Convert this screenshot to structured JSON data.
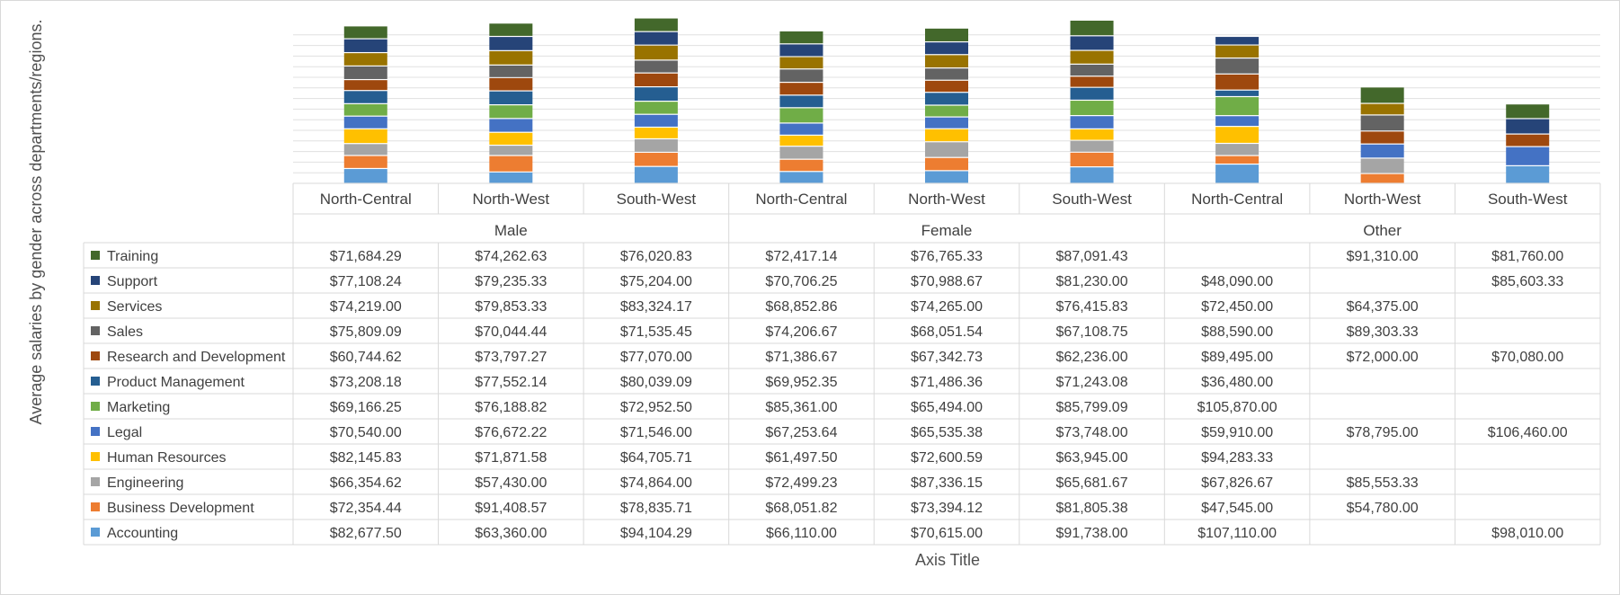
{
  "chart_data": {
    "type": "bar",
    "stacked": true,
    "ylabel": "Average salaries by gender across departments/regions.",
    "xlabel": "Axis Title",
    "groups": [
      "Male",
      "Female",
      "Other"
    ],
    "regions": [
      "North-Central",
      "North-West",
      "South-West"
    ],
    "categories": [
      "North-Central",
      "North-West",
      "South-West",
      "North-Central",
      "North-West",
      "South-West",
      "North-Central",
      "North-West",
      "South-West"
    ],
    "legend": "data-table",
    "grid": true,
    "series": [
      {
        "name": "Accounting",
        "color": "#5b9bd5",
        "values": [
          82677.5,
          63360.0,
          94104.29,
          66110.0,
          70615.0,
          91738.0,
          107110.0,
          null,
          98010.0
        ]
      },
      {
        "name": "Business Development",
        "color": "#ed7d31",
        "values": [
          72354.44,
          91408.57,
          78835.71,
          68051.82,
          73394.12,
          81805.38,
          47545.0,
          54780.0,
          null
        ]
      },
      {
        "name": "Engineering",
        "color": "#a5a5a5",
        "values": [
          66354.62,
          57430.0,
          74864.0,
          72499.23,
          87336.15,
          65681.67,
          67826.67,
          85553.33,
          null
        ]
      },
      {
        "name": "Human Resources",
        "color": "#ffc000",
        "values": [
          82145.83,
          71871.58,
          64705.71,
          61497.5,
          72600.59,
          63945.0,
          94283.33,
          null,
          null
        ]
      },
      {
        "name": "Legal",
        "color": "#4472c4",
        "values": [
          70540.0,
          76672.22,
          71546.0,
          67253.64,
          65535.38,
          73748.0,
          59910.0,
          78795.0,
          106460.0
        ]
      },
      {
        "name": "Marketing",
        "color": "#70ad47",
        "values": [
          69166.25,
          76188.82,
          72952.5,
          85361.0,
          65494.0,
          85799.09,
          105870.0,
          null,
          null
        ]
      },
      {
        "name": "Product Management",
        "color": "#255e91",
        "values": [
          73208.18,
          77552.14,
          80039.09,
          69952.35,
          71486.36,
          71243.08,
          36480.0,
          null,
          null
        ]
      },
      {
        "name": "Research and Development",
        "color": "#9e480e",
        "values": [
          60744.62,
          73797.27,
          77070.0,
          71386.67,
          67342.73,
          62236.0,
          89495.0,
          72000.0,
          70080.0
        ]
      },
      {
        "name": "Sales",
        "color": "#636363",
        "values": [
          75809.09,
          70044.44,
          71535.45,
          74206.67,
          68051.54,
          67108.75,
          88590.0,
          89303.33,
          null
        ]
      },
      {
        "name": "Services",
        "color": "#997300",
        "values": [
          74219.0,
          79853.33,
          83324.17,
          68852.86,
          74265.0,
          76415.83,
          72450.0,
          64375.0,
          null
        ]
      },
      {
        "name": "Support",
        "color": "#264478",
        "values": [
          77108.24,
          79235.33,
          75204.0,
          70706.25,
          70988.67,
          81230.0,
          48090.0,
          null,
          85603.33
        ]
      },
      {
        "name": "Training",
        "color": "#43682b",
        "values": [
          71684.29,
          74262.63,
          76020.83,
          72417.14,
          76765.33,
          87091.43,
          null,
          91310.0,
          81760.0
        ]
      }
    ]
  }
}
